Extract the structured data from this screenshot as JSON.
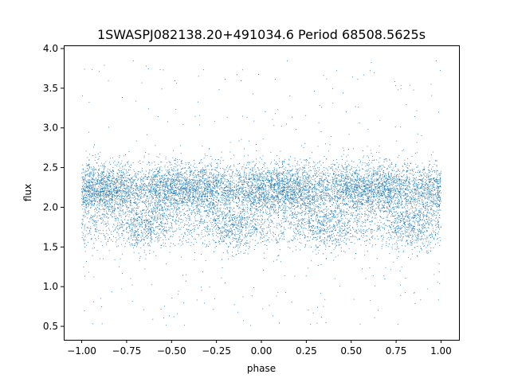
{
  "chart_data": {
    "type": "scatter",
    "title": "1SWASPJ082138.20+491034.6 Period 68508.5625s",
    "xlabel": "phase",
    "ylabel": "flux",
    "xlim": [
      -1.1,
      1.1
    ],
    "ylim": [
      0.33,
      4.04
    ],
    "xticks": [
      {
        "value": -1.0,
        "label": "−1.00"
      },
      {
        "value": -0.75,
        "label": "−0.75"
      },
      {
        "value": -0.5,
        "label": "−0.50"
      },
      {
        "value": -0.25,
        "label": "−0.25"
      },
      {
        "value": 0.0,
        "label": "0.00"
      },
      {
        "value": 0.25,
        "label": "0.25"
      },
      {
        "value": 0.5,
        "label": "0.50"
      },
      {
        "value": 0.75,
        "label": "0.75"
      },
      {
        "value": 1.0,
        "label": "1.00"
      }
    ],
    "yticks": [
      {
        "value": 0.5,
        "label": "0.5"
      },
      {
        "value": 1.0,
        "label": "1.0"
      },
      {
        "value": 1.5,
        "label": "1.5"
      },
      {
        "value": 2.0,
        "label": "2.0"
      },
      {
        "value": 2.5,
        "label": "2.5"
      },
      {
        "value": 3.0,
        "label": "3.0"
      },
      {
        "value": 3.5,
        "label": "3.5"
      },
      {
        "value": 4.0,
        "label": "4.0"
      }
    ],
    "grid": false,
    "point_color": "#1f77b4",
    "series": [
      {
        "x_range": [
          -1.0,
          1.0
        ],
        "y_range": [
          0.48,
          3.85
        ],
        "baseline_flux": 2.22,
        "dip_flux": 1.75,
        "dip_phases": [
          -0.65,
          -0.15,
          0.35,
          0.85
        ],
        "dense_band": [
          1.5,
          2.7
        ]
      }
    ]
  }
}
